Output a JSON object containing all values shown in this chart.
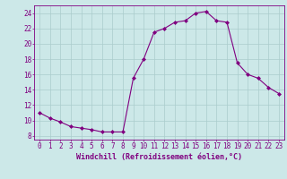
{
  "x": [
    0,
    1,
    2,
    3,
    4,
    5,
    6,
    7,
    8,
    9,
    10,
    11,
    12,
    13,
    14,
    15,
    16,
    17,
    18,
    19,
    20,
    21,
    22,
    23
  ],
  "y": [
    11.0,
    10.3,
    9.8,
    9.2,
    9.0,
    8.8,
    8.5,
    8.5,
    8.5,
    15.5,
    18.0,
    21.5,
    22.0,
    22.8,
    23.0,
    24.0,
    24.2,
    23.0,
    22.8,
    17.5,
    16.0,
    15.5,
    14.3,
    13.5
  ],
  "xlim": [
    -0.5,
    23.5
  ],
  "ylim": [
    7.5,
    25.0
  ],
  "yticks": [
    8,
    10,
    12,
    14,
    16,
    18,
    20,
    22,
    24
  ],
  "xticks": [
    0,
    1,
    2,
    3,
    4,
    5,
    6,
    7,
    8,
    9,
    10,
    11,
    12,
    13,
    14,
    15,
    16,
    17,
    18,
    19,
    20,
    21,
    22,
    23
  ],
  "xlabel": "Windchill (Refroidissement éolien,°C)",
  "line_color": "#800080",
  "marker_color": "#800080",
  "bg_color": "#cce8e8",
  "grid_color": "#aacccc",
  "xlabel_fontsize": 6.0,
  "tick_fontsize": 5.5
}
